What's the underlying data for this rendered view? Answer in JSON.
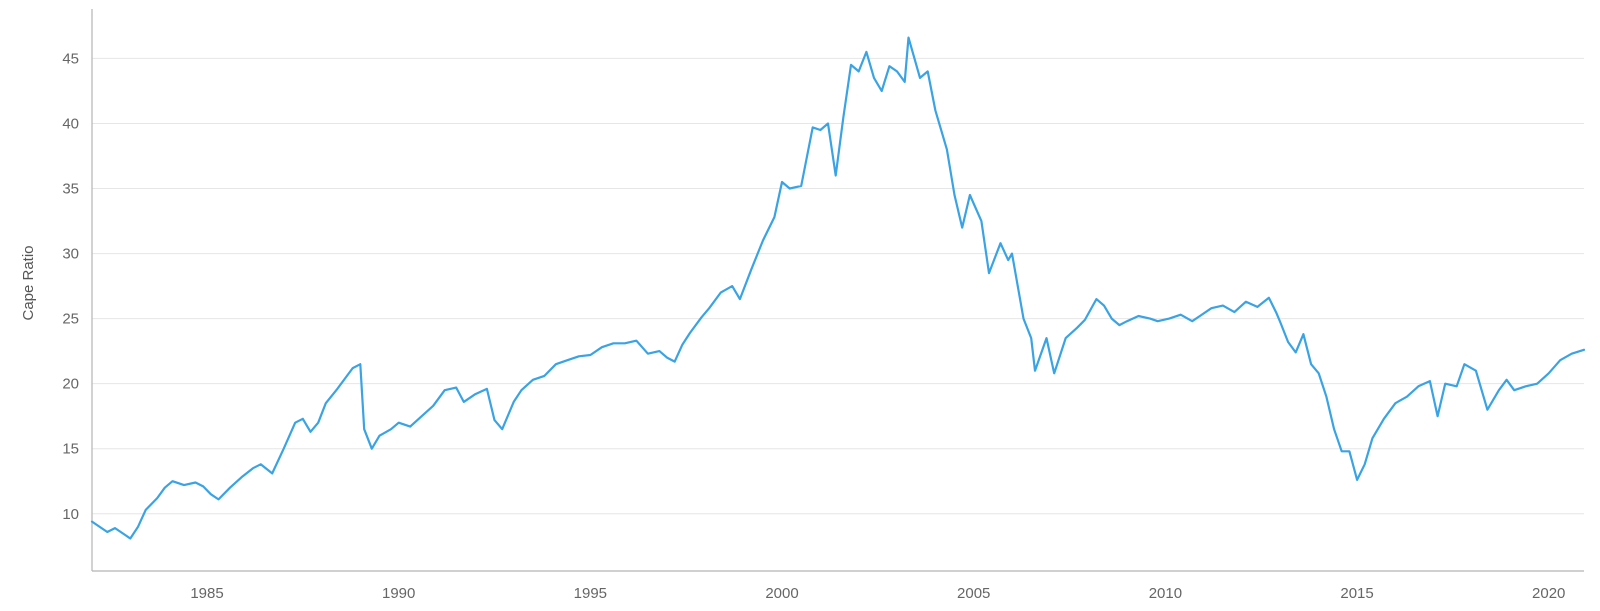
{
  "chart_data": {
    "type": "line",
    "title": "",
    "xlabel": "",
    "ylabel": "Cape Ratio",
    "xlim": [
      1982.0,
      2020.92
    ],
    "ylim": [
      5.6,
      48.8
    ],
    "x_ticks": [
      1985,
      1990,
      1995,
      2000,
      2005,
      2010,
      2015,
      2020
    ],
    "y_ticks": [
      10,
      15,
      20,
      25,
      30,
      35,
      40,
      45
    ],
    "grid": "horizontal",
    "legend": "none",
    "series": [
      {
        "color": "#3aa3e3",
        "points": [
          [
            1982.0,
            9.4
          ],
          [
            1982.4,
            8.6
          ],
          [
            1982.6,
            8.9
          ],
          [
            1982.9,
            8.3
          ],
          [
            1983.0,
            8.1
          ],
          [
            1983.2,
            9.0
          ],
          [
            1983.4,
            10.3
          ],
          [
            1983.7,
            11.2
          ],
          [
            1983.9,
            12.0
          ],
          [
            1984.1,
            12.5
          ],
          [
            1984.4,
            12.2
          ],
          [
            1984.7,
            12.4
          ],
          [
            1984.9,
            12.1
          ],
          [
            1985.1,
            11.5
          ],
          [
            1985.3,
            11.1
          ],
          [
            1985.6,
            12.0
          ],
          [
            1985.9,
            12.8
          ],
          [
            1986.2,
            13.5
          ],
          [
            1986.4,
            13.8
          ],
          [
            1986.7,
            13.1
          ],
          [
            1987.0,
            15.0
          ],
          [
            1987.3,
            17.0
          ],
          [
            1987.5,
            17.3
          ],
          [
            1987.7,
            16.3
          ],
          [
            1987.9,
            17.0
          ],
          [
            1988.1,
            18.5
          ],
          [
            1988.4,
            19.6
          ],
          [
            1988.6,
            20.4
          ],
          [
            1988.8,
            21.2
          ],
          [
            1989.0,
            21.5
          ],
          [
            1989.1,
            16.5
          ],
          [
            1989.3,
            15.0
          ],
          [
            1989.5,
            16.0
          ],
          [
            1989.8,
            16.5
          ],
          [
            1990.0,
            17.0
          ],
          [
            1990.3,
            16.7
          ],
          [
            1990.6,
            17.5
          ],
          [
            1990.9,
            18.3
          ],
          [
            1991.2,
            19.5
          ],
          [
            1991.5,
            19.7
          ],
          [
            1991.7,
            18.6
          ],
          [
            1992.0,
            19.2
          ],
          [
            1992.3,
            19.6
          ],
          [
            1992.5,
            17.2
          ],
          [
            1992.7,
            16.5
          ],
          [
            1993.0,
            18.6
          ],
          [
            1993.2,
            19.5
          ],
          [
            1993.5,
            20.3
          ],
          [
            1993.8,
            20.6
          ],
          [
            1994.1,
            21.5
          ],
          [
            1994.4,
            21.8
          ],
          [
            1994.7,
            22.1
          ],
          [
            1995.0,
            22.2
          ],
          [
            1995.3,
            22.8
          ],
          [
            1995.6,
            23.1
          ],
          [
            1995.9,
            23.1
          ],
          [
            1996.2,
            23.3
          ],
          [
            1996.5,
            22.3
          ],
          [
            1996.8,
            22.5
          ],
          [
            1997.0,
            22.0
          ],
          [
            1997.2,
            21.7
          ],
          [
            1997.4,
            23.0
          ],
          [
            1997.6,
            23.9
          ],
          [
            1997.9,
            25.1
          ],
          [
            1998.1,
            25.8
          ],
          [
            1998.4,
            27.0
          ],
          [
            1998.7,
            27.5
          ],
          [
            1998.9,
            26.5
          ],
          [
            1999.2,
            28.8
          ],
          [
            1999.5,
            31.0
          ],
          [
            1999.8,
            32.8
          ],
          [
            2000.0,
            35.5
          ],
          [
            2000.2,
            35.0
          ],
          [
            2000.5,
            35.2
          ],
          [
            2000.8,
            39.7
          ],
          [
            2001.0,
            39.5
          ],
          [
            2001.2,
            40.0
          ],
          [
            2001.4,
            36.0
          ],
          [
            2001.6,
            40.5
          ],
          [
            2001.8,
            44.5
          ],
          [
            2002.0,
            44.0
          ],
          [
            2002.2,
            45.5
          ],
          [
            2002.4,
            43.5
          ],
          [
            2002.6,
            42.5
          ],
          [
            2002.8,
            44.4
          ],
          [
            2003.0,
            44.0
          ],
          [
            2003.2,
            43.2
          ],
          [
            2003.3,
            46.6
          ],
          [
            2003.6,
            43.5
          ],
          [
            2003.8,
            44.0
          ],
          [
            2004.0,
            41.0
          ],
          [
            2004.3,
            38.0
          ],
          [
            2004.5,
            34.5
          ],
          [
            2004.7,
            32.0
          ],
          [
            2004.9,
            34.5
          ],
          [
            2005.2,
            32.5
          ],
          [
            2005.4,
            28.5
          ],
          [
            2005.7,
            30.8
          ],
          [
            2005.9,
            29.5
          ],
          [
            2006.0,
            30.0
          ],
          [
            2006.3,
            25.0
          ],
          [
            2006.5,
            23.5
          ],
          [
            2006.6,
            21.0
          ],
          [
            2006.9,
            23.5
          ],
          [
            2007.1,
            20.8
          ],
          [
            2007.4,
            23.5
          ],
          [
            2007.7,
            24.3
          ],
          [
            2007.9,
            24.9
          ],
          [
            2008.2,
            26.5
          ],
          [
            2008.4,
            26.0
          ],
          [
            2008.6,
            25.0
          ],
          [
            2008.8,
            24.5
          ],
          [
            2009.0,
            24.8
          ],
          [
            2009.3,
            25.2
          ],
          [
            2009.6,
            25.0
          ],
          [
            2009.8,
            24.8
          ],
          [
            2010.1,
            25.0
          ],
          [
            2010.4,
            25.3
          ],
          [
            2010.7,
            24.8
          ],
          [
            2010.9,
            25.2
          ],
          [
            2011.2,
            25.8
          ],
          [
            2011.5,
            26.0
          ],
          [
            2011.8,
            25.5
          ],
          [
            2012.1,
            26.3
          ],
          [
            2012.4,
            25.9
          ],
          [
            2012.7,
            26.6
          ],
          [
            2012.9,
            25.4
          ],
          [
            2013.0,
            24.7
          ],
          [
            2013.2,
            23.2
          ],
          [
            2013.4,
            22.4
          ],
          [
            2013.6,
            23.8
          ],
          [
            2013.8,
            21.5
          ],
          [
            2014.0,
            20.8
          ],
          [
            2014.2,
            19.0
          ],
          [
            2014.4,
            16.5
          ],
          [
            2014.6,
            14.8
          ],
          [
            2014.8,
            14.8
          ],
          [
            2015.0,
            12.6
          ],
          [
            2015.2,
            13.8
          ],
          [
            2015.4,
            15.8
          ],
          [
            2015.7,
            17.3
          ],
          [
            2016.0,
            18.5
          ],
          [
            2016.3,
            19.0
          ],
          [
            2016.6,
            19.8
          ],
          [
            2016.9,
            20.2
          ],
          [
            2017.1,
            17.5
          ],
          [
            2017.3,
            20.0
          ],
          [
            2017.6,
            19.8
          ],
          [
            2017.8,
            21.5
          ],
          [
            2018.1,
            21.0
          ],
          [
            2018.4,
            18.0
          ],
          [
            2018.7,
            19.5
          ],
          [
            2018.9,
            20.3
          ],
          [
            2019.1,
            19.5
          ],
          [
            2019.4,
            19.8
          ],
          [
            2019.7,
            20.0
          ],
          [
            2020.0,
            20.8
          ],
          [
            2020.3,
            21.8
          ],
          [
            2020.6,
            22.3
          ],
          [
            2020.92,
            22.6
          ]
        ]
      }
    ]
  }
}
